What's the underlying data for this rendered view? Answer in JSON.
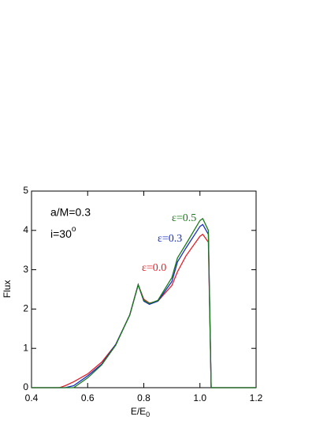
{
  "chart_data": {
    "type": "line",
    "x_label": "E/E",
    "x_label_sub": "0",
    "y_label": "Flux",
    "annotations": [
      "a/M=0.3",
      "i=30",
      "o"
    ],
    "x": [
      0.4,
      0.5,
      0.52,
      0.55,
      0.6,
      0.65,
      0.7,
      0.75,
      0.78,
      0.8,
      0.82,
      0.85,
      0.9,
      0.92,
      0.95,
      1.0,
      1.01,
      1.03,
      1.04,
      1.05,
      1.1,
      1.2
    ],
    "series": [
      {
        "name": "ε=0.0",
        "color": "#e0202a",
        "values": [
          0,
          0,
          0.05,
          0.15,
          0.35,
          0.65,
          1.1,
          1.85,
          2.62,
          2.25,
          2.15,
          2.2,
          2.6,
          2.95,
          3.35,
          3.85,
          3.9,
          3.7,
          0,
          0,
          0,
          0
        ]
      },
      {
        "name": "ε=0.3",
        "color": "#1a2fc0",
        "values": [
          0,
          0,
          0,
          0.05,
          0.3,
          0.6,
          1.1,
          1.85,
          2.62,
          2.2,
          2.12,
          2.2,
          2.7,
          3.2,
          3.55,
          4.1,
          4.15,
          3.9,
          0,
          0,
          0,
          0
        ]
      },
      {
        "name": "ε=0.5",
        "color": "#1a7a1a",
        "values": [
          0,
          0,
          0,
          0,
          0.25,
          0.58,
          1.08,
          1.85,
          2.62,
          2.22,
          2.14,
          2.22,
          2.8,
          3.3,
          3.65,
          4.25,
          4.3,
          4.0,
          0,
          0,
          0,
          0
        ]
      }
    ],
    "xlim": [
      0.4,
      1.2
    ],
    "ylim": [
      0,
      5
    ],
    "xticks": [
      0.4,
      0.6,
      0.8,
      {
        "value": 1,
        "label": "1.0"
      },
      1.2
    ],
    "yticks": [
      0,
      1,
      2,
      3,
      4,
      5
    ]
  }
}
